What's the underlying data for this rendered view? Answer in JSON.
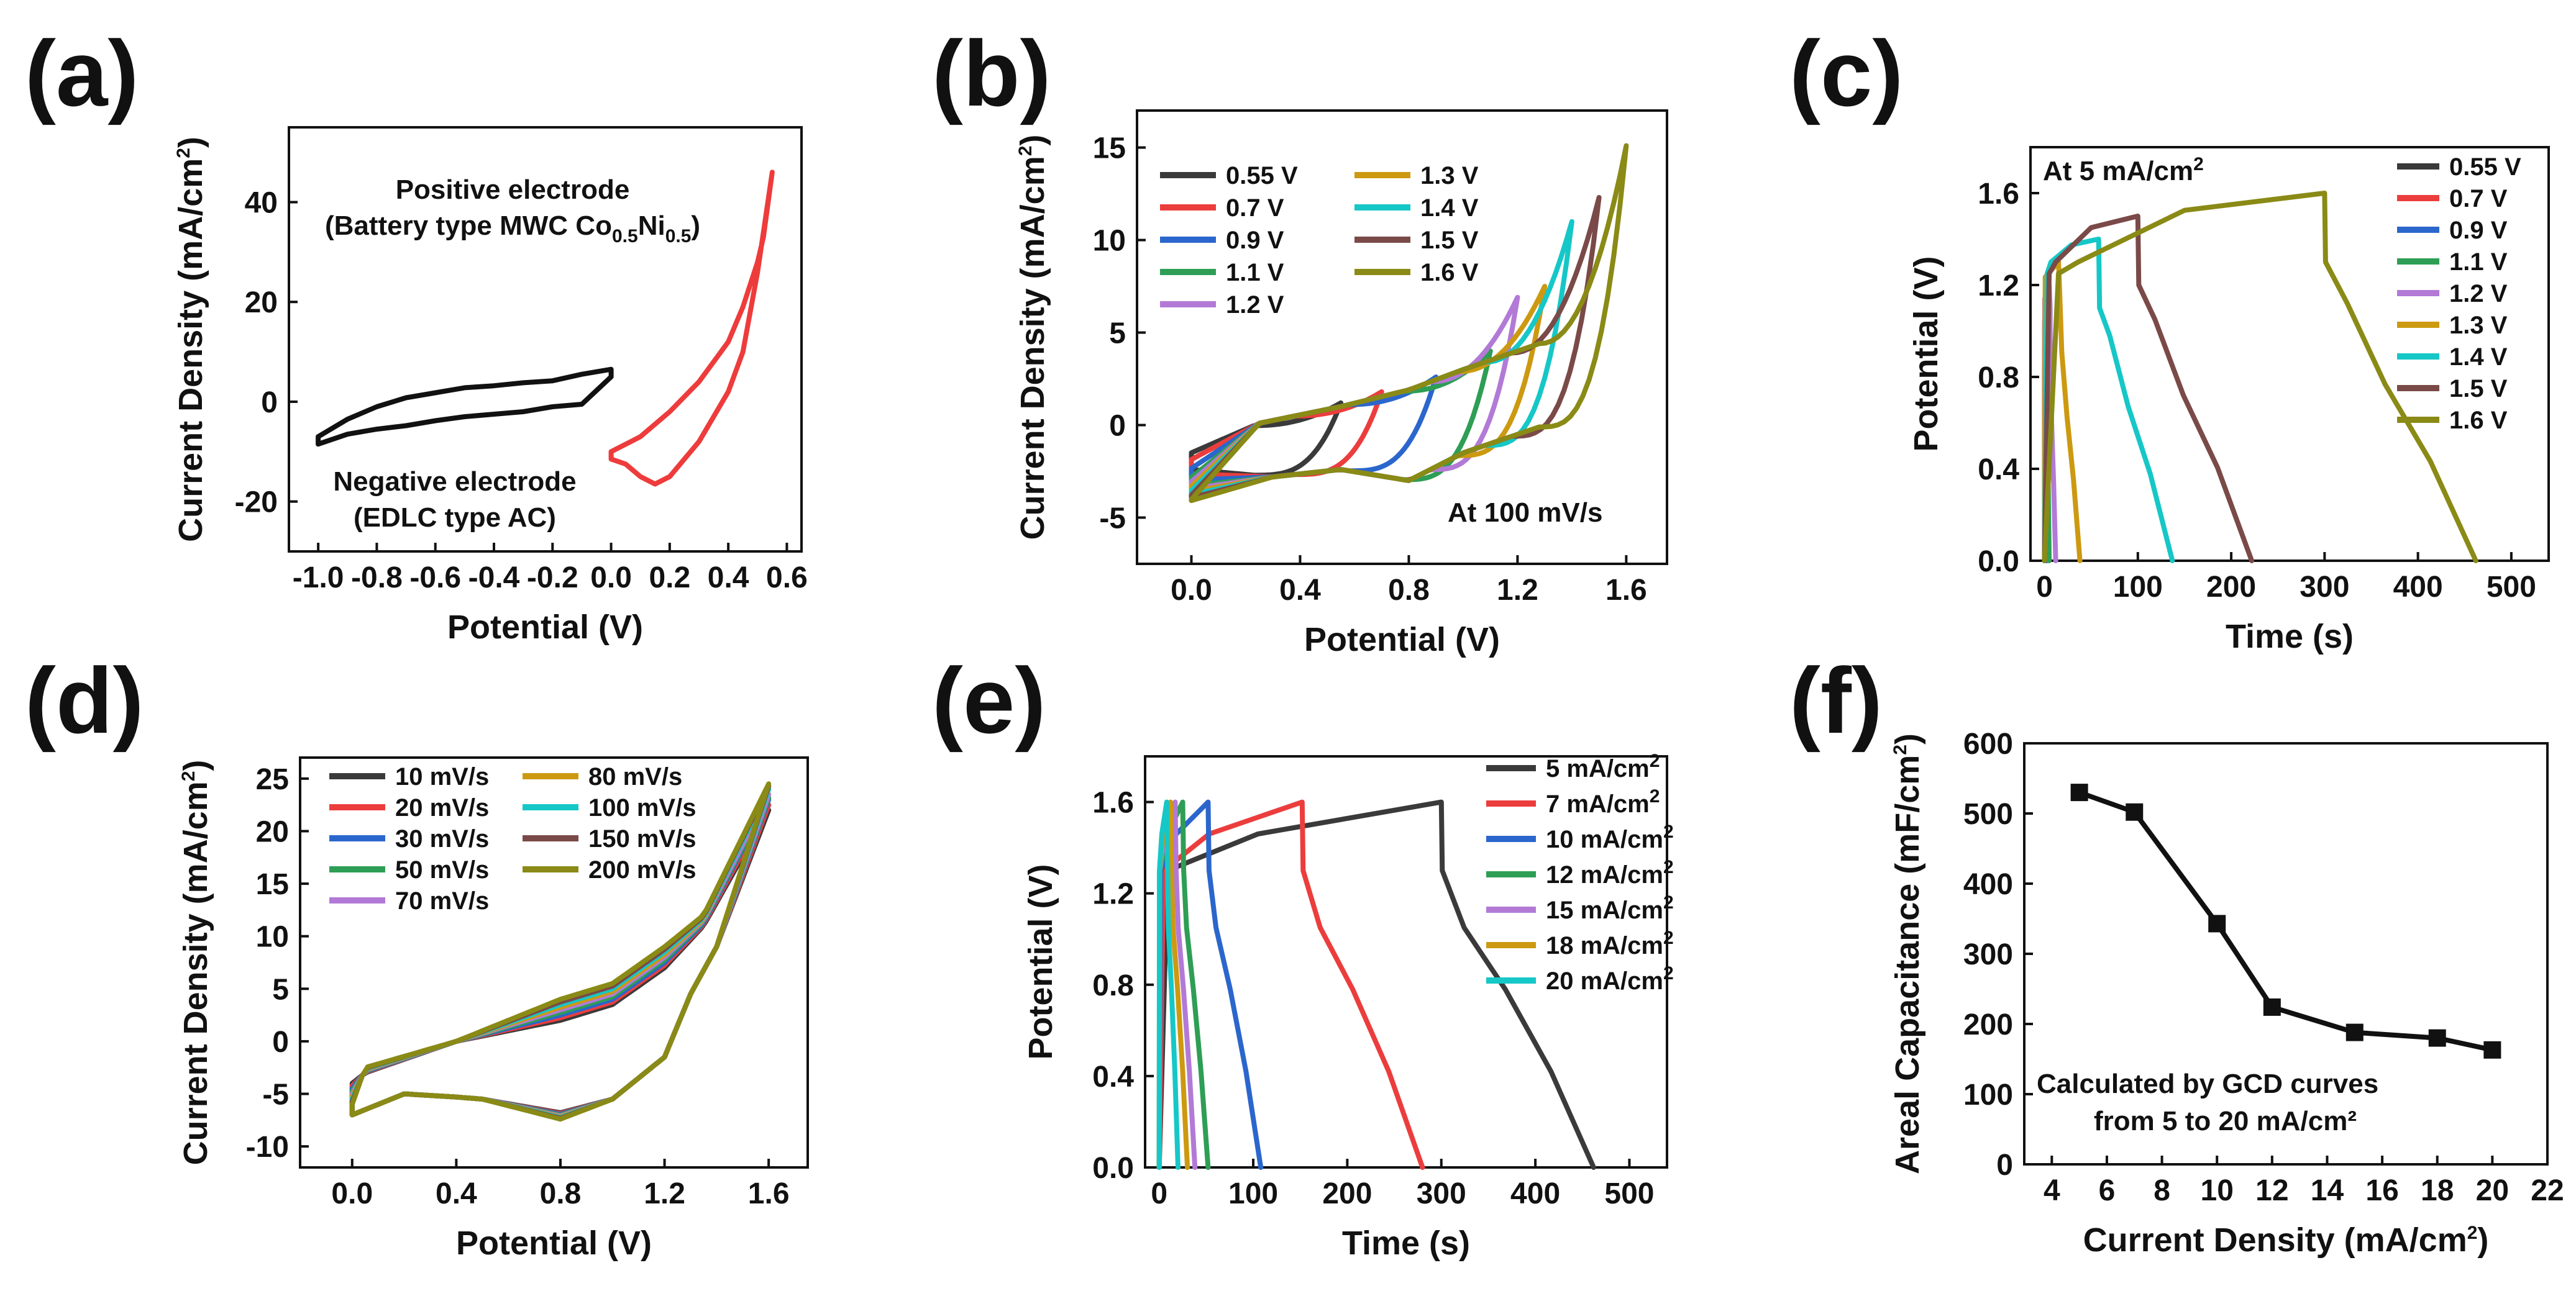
{
  "colors": {
    "black": "#3a3a3a",
    "red": "#ec3d3d",
    "blue": "#2b66cc",
    "green": "#2e9e55",
    "violet": "#b27ad6",
    "orange": "#cc9910",
    "cyan": "#16c7c7",
    "brown": "#7a4a48",
    "olive": "#8a8a16",
    "note_red": "#ee2222"
  },
  "chart_data": [
    {
      "panel": "(a)",
      "type": "line",
      "xlabel": "Potential (V)",
      "ylabel": "Current Density (mA/cm²)",
      "ylabel_parts": {
        "main": "Current Density (mA/cm",
        "sup": "2",
        "end": ")"
      },
      "xlim": [
        -1.1,
        0.65
      ],
      "ylim": [
        -30,
        55
      ],
      "xticks": [
        -1.0,
        -0.8,
        -0.6,
        -0.4,
        -0.2,
        0.0,
        0.2,
        0.4,
        0.6
      ],
      "xtick_labels": [
        "-1.0",
        "-0.8",
        "-0.6",
        "-0.4",
        "-0.2",
        "0.0",
        "0.2",
        "0.4",
        "0.6"
      ],
      "yticks": [
        -20,
        0,
        20,
        40
      ],
      "ytick_labels": [
        "-20",
        "0",
        "20",
        "40"
      ],
      "annotations": {
        "positive_line1": "Positive electrode",
        "positive_line2_main": "(Battery type MWC Co",
        "positive_line2_sub1": "0.5",
        "positive_line2_mid": "Ni",
        "positive_line2_sub2": "0.5",
        "positive_line2_end": ")",
        "negative_line1": "Negative electrode",
        "negative_line2": "(EDLC type AC)"
      },
      "series": [
        {
          "name": "Negative electrode (EDLC type AC)",
          "color": "#111111",
          "points": [
            [
              -1.0,
              -8.5
            ],
            [
              -0.9,
              -6.5
            ],
            [
              -0.8,
              -5.5
            ],
            [
              -0.7,
              -4.8
            ],
            [
              -0.6,
              -3.8
            ],
            [
              -0.5,
              -3.0
            ],
            [
              -0.4,
              -2.5
            ],
            [
              -0.3,
              -2.0
            ],
            [
              -0.2,
              -1.0
            ],
            [
              -0.1,
              -0.5
            ],
            [
              0.0,
              5.0
            ],
            [
              0.0,
              6.5
            ],
            [
              -0.1,
              5.5
            ],
            [
              -0.2,
              4.2
            ],
            [
              -0.3,
              3.8
            ],
            [
              -0.4,
              3.2
            ],
            [
              -0.5,
              2.8
            ],
            [
              -0.6,
              1.8
            ],
            [
              -0.7,
              0.8
            ],
            [
              -0.8,
              -1.0
            ],
            [
              -0.9,
              -3.5
            ],
            [
              -1.0,
              -7.0
            ],
            [
              -1.0,
              -8.5
            ]
          ]
        },
        {
          "name": "Positive electrode (Battery type MWC Co0.5Ni0.5)",
          "color": "#ee3b3b",
          "points": [
            [
              0.0,
              -11.5
            ],
            [
              0.05,
              -12.5
            ],
            [
              0.1,
              -15.0
            ],
            [
              0.15,
              -16.5
            ],
            [
              0.2,
              -15.0
            ],
            [
              0.3,
              -8.0
            ],
            [
              0.4,
              2.0
            ],
            [
              0.45,
              10.0
            ],
            [
              0.5,
              26.0
            ],
            [
              0.55,
              46.0
            ],
            [
              0.52,
              33.0
            ],
            [
              0.5,
              28.0
            ],
            [
              0.45,
              19.0
            ],
            [
              0.4,
              12.0
            ],
            [
              0.3,
              4.0
            ],
            [
              0.2,
              -2.0
            ],
            [
              0.1,
              -7.0
            ],
            [
              0.0,
              -10.0
            ],
            [
              0.0,
              -11.5
            ]
          ]
        }
      ]
    },
    {
      "panel": "(b)",
      "type": "line",
      "xlabel": "Potential (V)",
      "ylabel": "Current Density (mA/cm²)",
      "ylabel_parts": {
        "main": "Current Density (mA/cm",
        "sup": "2",
        "end": ")"
      },
      "xlim": [
        -0.2,
        1.75
      ],
      "ylim": [
        -7.5,
        17
      ],
      "xticks": [
        0.0,
        0.4,
        0.8,
        1.2,
        1.6
      ],
      "xtick_labels": [
        "0.0",
        "0.4",
        "0.8",
        "1.2",
        "1.6"
      ],
      "yticks": [
        -5,
        0,
        5,
        10,
        15
      ],
      "ytick_labels": [
        "-5",
        "0",
        "5",
        "10",
        "15"
      ],
      "annotation": "At 100 mV/s",
      "series": [
        {
          "name": "0.55 V",
          "color": "#3a3a3a",
          "vmax": 0.55,
          "imax": 1.2
        },
        {
          "name": "0.7 V",
          "color": "#ec3d3d",
          "vmax": 0.7,
          "imax": 1.8
        },
        {
          "name": "0.9 V",
          "color": "#2b66cc",
          "vmax": 0.9,
          "imax": 2.6
        },
        {
          "name": "1.1 V",
          "color": "#2e9e55",
          "vmax": 1.1,
          "imax": 4.0
        },
        {
          "name": "1.2 V",
          "color": "#b27ad6",
          "vmax": 1.2,
          "imax": 6.9
        },
        {
          "name": "1.3 V",
          "color": "#cc9910",
          "vmax": 1.3,
          "imax": 7.5
        },
        {
          "name": "1.4 V",
          "color": "#16c7c7",
          "vmax": 1.4,
          "imax": 11.0
        },
        {
          "name": "1.5 V",
          "color": "#7a4a48",
          "vmax": 1.5,
          "imax": 12.3
        },
        {
          "name": "1.6 V",
          "color": "#8a8a16",
          "vmax": 1.6,
          "imax": 15.1
        }
      ]
    },
    {
      "panel": "(c)",
      "type": "line",
      "xlabel": "Time (s)",
      "ylabel": "Potential (V)",
      "xlim": [
        -15,
        540
      ],
      "ylim": [
        0,
        1.8
      ],
      "xticks": [
        0,
        100,
        200,
        300,
        400,
        500
      ],
      "xtick_labels": [
        "0",
        "100",
        "200",
        "300",
        "400",
        "500"
      ],
      "yticks": [
        0.0,
        0.4,
        0.8,
        1.2,
        1.6
      ],
      "ytick_labels": [
        "0.0",
        "0.4",
        "0.8",
        "1.2",
        "1.6"
      ],
      "annotation": "At 5 mA/cm²",
      "annotation_parts": {
        "main": "At 5 mA/cm",
        "sup": "2"
      },
      "series": [
        {
          "name": "0.55 V",
          "color": "#3a3a3a",
          "vmax": 0.55,
          "tc": 0.3,
          "tend": 0.8
        },
        {
          "name": "0.7 V",
          "color": "#ec3d3d",
          "vmax": 0.7,
          "tc": 0.5,
          "tend": 1.2
        },
        {
          "name": "0.9 V",
          "color": "#2b66cc",
          "vmax": 0.9,
          "tc": 1.0,
          "tend": 2.5
        },
        {
          "name": "1.1 V",
          "color": "#2e9e55",
          "vmax": 1.1,
          "tc": 2.0,
          "tend": 5.0
        },
        {
          "name": "1.2 V",
          "color": "#b27ad6",
          "vmax": 1.2,
          "tc": 5.0,
          "tend": 12.0
        },
        {
          "name": "1.3 V",
          "color": "#cc9910",
          "vmax": 1.3,
          "tc": 15.0,
          "tend": 38.0
        },
        {
          "name": "1.4 V",
          "color": "#16c7c7",
          "vmax": 1.4,
          "tc": 58.0,
          "tend": 137.0
        },
        {
          "name": "1.5 V",
          "color": "#7a4a48",
          "vmax": 1.5,
          "tc": 100.0,
          "tend": 222.0
        },
        {
          "name": "1.6 V",
          "color": "#8a8a16",
          "vmax": 1.6,
          "tc": 300.0,
          "tend": 462.0
        }
      ]
    },
    {
      "panel": "(d)",
      "type": "line",
      "xlabel": "Potential (V)",
      "ylabel": "Current Density (mA/cm²)",
      "ylabel_parts": {
        "main": "Current Density (mA/cm",
        "sup": "2",
        "end": ")"
      },
      "xlim": [
        -0.2,
        1.75
      ],
      "ylim": [
        -12,
        27
      ],
      "xticks": [
        0.0,
        0.4,
        0.8,
        1.2,
        1.6
      ],
      "xtick_labels": [
        "0.0",
        "0.4",
        "0.8",
        "1.2",
        "1.6"
      ],
      "yticks": [
        -10,
        -5,
        0,
        5,
        10,
        15,
        20,
        25
      ],
      "ytick_labels": [
        "-10",
        "-5",
        "0",
        "5",
        "10",
        "15",
        "20",
        "25"
      ],
      "series": [
        {
          "name": "10 mV/s",
          "color": "#3a3a3a",
          "imax": 22.0
        },
        {
          "name": "20 mV/s",
          "color": "#ec3d3d",
          "imax": 22.5
        },
        {
          "name": "30 mV/s",
          "color": "#2b66cc",
          "imax": 23.0
        },
        {
          "name": "50 mV/s",
          "color": "#2e9e55",
          "imax": 23.2
        },
        {
          "name": "70 mV/s",
          "color": "#b27ad6",
          "imax": 23.5
        },
        {
          "name": "80 mV/s",
          "color": "#cc9910",
          "imax": 24.2
        },
        {
          "name": "100 mV/s",
          "color": "#16c7c7",
          "imax": 24.0
        },
        {
          "name": "150 mV/s",
          "color": "#7a4a48",
          "imax": 24.3
        },
        {
          "name": "200 mV/s",
          "color": "#8a8a16",
          "imax": 24.5
        }
      ]
    },
    {
      "panel": "(e)",
      "type": "line",
      "xlabel": "Time (s)",
      "ylabel": "Potential (V)",
      "xlim": [
        -15,
        540
      ],
      "ylim": [
        0,
        1.8
      ],
      "xticks": [
        0,
        100,
        200,
        300,
        400,
        500
      ],
      "xtick_labels": [
        "0",
        "100",
        "200",
        "300",
        "400",
        "500"
      ],
      "yticks": [
        0.0,
        0.4,
        0.8,
        1.2,
        1.6
      ],
      "ytick_labels": [
        "0.0",
        "0.4",
        "0.8",
        "1.2",
        "1.6"
      ],
      "series": [
        {
          "name": "5 mA/cm²",
          "label_main": "5 mA/cm",
          "color": "#3a3a3a",
          "tc": 300.0,
          "tend": 462.0
        },
        {
          "name": "7 mA/cm²",
          "label_main": "7 mA/cm",
          "color": "#ec3d3d",
          "tc": 152.0,
          "tend": 280.0
        },
        {
          "name": "10 mA/cm²",
          "label_main": "10 mA/cm",
          "color": "#2b66cc",
          "tc": 52.0,
          "tend": 108.0
        },
        {
          "name": "12 mA/cm²",
          "label_main": "12 mA/cm",
          "color": "#2e9e55",
          "tc": 25.0,
          "tend": 52.0
        },
        {
          "name": "15 mA/cm²",
          "label_main": "15 mA/cm",
          "color": "#b27ad6",
          "tc": 17.0,
          "tend": 38.0
        },
        {
          "name": "18 mA/cm²",
          "label_main": "18 mA/cm",
          "color": "#cc9910",
          "tc": 12.0,
          "tend": 30.0
        },
        {
          "name": "20 mA/cm²",
          "label_main": "20 mA/cm",
          "color": "#16c7c7",
          "tc": 8.0,
          "tend": 20.0
        }
      ]
    },
    {
      "panel": "(f)",
      "type": "scatter",
      "xlabel": "Current Density (mA/cm²)",
      "xlabel_parts": {
        "main": "Current Density (mA/cm",
        "sup": "2",
        "end": ")"
      },
      "ylabel": "Areal Capacitance (mF/cm²)",
      "ylabel_parts": {
        "main": "Areal Capacitance (mF/cm",
        "sup": "2",
        "end": ")"
      },
      "xlim": [
        3,
        22
      ],
      "ylim": [
        0,
        600
      ],
      "xticks": [
        4,
        6,
        8,
        10,
        12,
        14,
        16,
        18,
        20,
        22
      ],
      "xtick_labels": [
        "4",
        "6",
        "8",
        "10",
        "12",
        "14",
        "16",
        "18",
        "20",
        "22"
      ],
      "yticks": [
        0,
        100,
        200,
        300,
        400,
        500,
        600
      ],
      "ytick_labels": [
        "0",
        "100",
        "200",
        "300",
        "400",
        "500",
        "600"
      ],
      "annotation_line1": "Calculated by GCD curves",
      "annotation_line2": "from 5 to 20 mA/cm²",
      "x": [
        5,
        7,
        10,
        12,
        15,
        18,
        20
      ],
      "y": [
        530,
        502,
        343,
        224,
        188,
        180,
        163
      ],
      "color": "#111111"
    }
  ]
}
